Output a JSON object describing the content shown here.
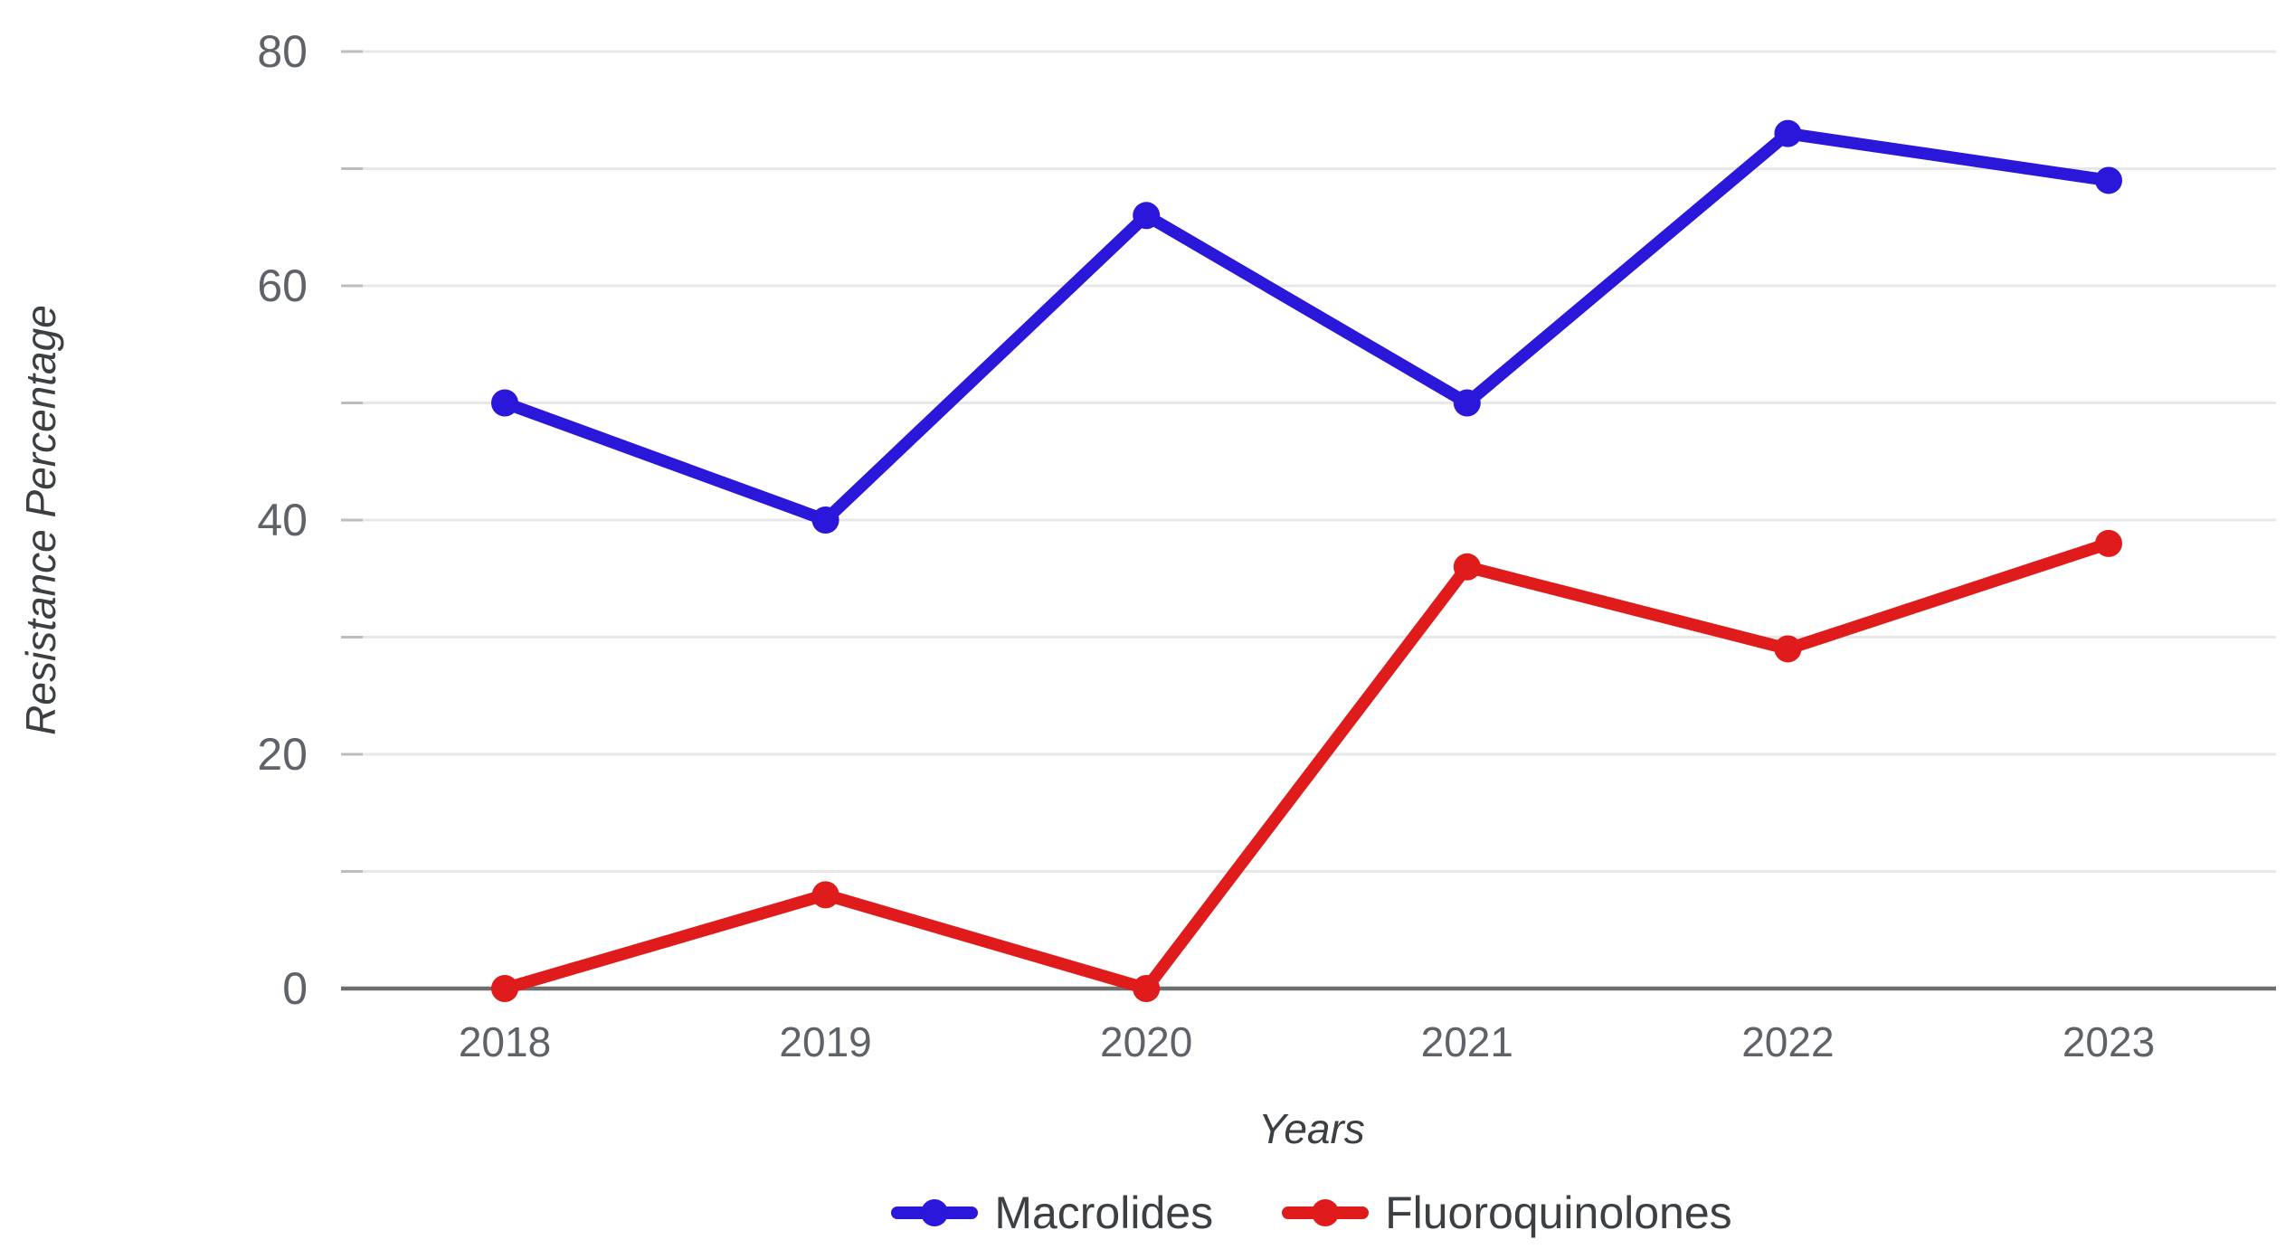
{
  "chart_data": {
    "type": "line",
    "title": "",
    "xlabel": "Years",
    "ylabel": "Resistance Percentage",
    "categories": [
      "2018",
      "2019",
      "2020",
      "2021",
      "2022",
      "2023"
    ],
    "series": [
      {
        "name": "Macrolides",
        "color": "#2a17d9",
        "values": [
          50,
          40,
          66,
          50,
          73,
          69
        ]
      },
      {
        "name": "Fluoroquinolones",
        "color": "#e01b1b",
        "values": [
          0,
          8,
          0,
          36,
          29,
          38
        ]
      }
    ],
    "ylim": [
      0,
      80
    ],
    "ytick_minor_step": 10,
    "ytick_label_step": 20,
    "grid": "horizontal",
    "legend_position": "bottom",
    "colors": {
      "gridline": "#e8e8e8",
      "tick_mark": "#bdbdbd",
      "axis_line": "#6e6e6e",
      "tick_label": "#5f6368",
      "title_text": "#3c4043"
    }
  }
}
